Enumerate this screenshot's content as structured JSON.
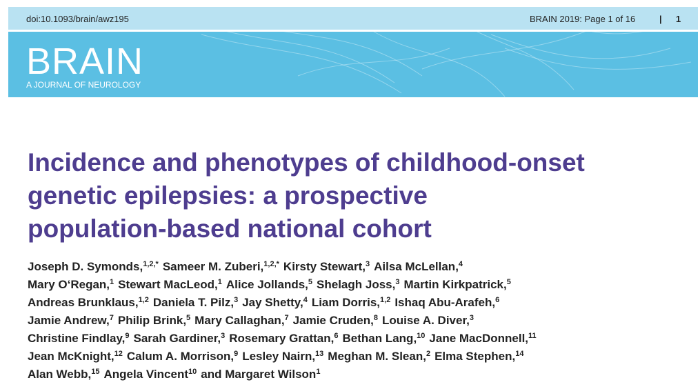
{
  "header": {
    "doi": "doi:10.1093/brain/awz195",
    "page_info": "BRAIN 2019: Page 1 of 16",
    "page_number": "1",
    "journal": "BRAIN",
    "journal_subtitle": "A JOURNAL OF NEUROLOGY"
  },
  "title_lines": [
    "Incidence and phenotypes of childhood-onset",
    "genetic epilepsies: a prospective",
    "population-based national cohort"
  ],
  "author_lines": [
    [
      {
        "name": "Joseph D. Symonds,",
        "sup": "1,2,*"
      },
      {
        "name": "Sameer M. Zuberi,",
        "sup": "1,2,*"
      },
      {
        "name": "Kirsty Stewart,",
        "sup": "3"
      },
      {
        "name": "Ailsa McLellan,",
        "sup": "4"
      }
    ],
    [
      {
        "name": "Mary O‘Regan,",
        "sup": "1"
      },
      {
        "name": "Stewart MacLeod,",
        "sup": "1"
      },
      {
        "name": "Alice Jollands,",
        "sup": "5"
      },
      {
        "name": "Shelagh Joss,",
        "sup": "3"
      },
      {
        "name": "Martin Kirkpatrick,",
        "sup": "5"
      }
    ],
    [
      {
        "name": "Andreas Brunklaus,",
        "sup": "1,2"
      },
      {
        "name": "Daniela T. Pilz,",
        "sup": "3"
      },
      {
        "name": "Jay Shetty,",
        "sup": "4"
      },
      {
        "name": "Liam Dorris,",
        "sup": "1,2"
      },
      {
        "name": "Ishaq Abu-Arafeh,",
        "sup": "6"
      }
    ],
    [
      {
        "name": "Jamie Andrew,",
        "sup": "7"
      },
      {
        "name": "Philip Brink,",
        "sup": "5"
      },
      {
        "name": "Mary Callaghan,",
        "sup": "7"
      },
      {
        "name": "Jamie Cruden,",
        "sup": "8"
      },
      {
        "name": "Louise A. Diver,",
        "sup": "3"
      }
    ],
    [
      {
        "name": "Christine Findlay,",
        "sup": "9"
      },
      {
        "name": "Sarah Gardiner,",
        "sup": "3"
      },
      {
        "name": "Rosemary Grattan,",
        "sup": "6"
      },
      {
        "name": "Bethan Lang,",
        "sup": "10"
      },
      {
        "name": "Jane MacDonnell,",
        "sup": "11"
      }
    ],
    [
      {
        "name": "Jean McKnight,",
        "sup": "12"
      },
      {
        "name": "Calum A. Morrison,",
        "sup": "9"
      },
      {
        "name": "Lesley Nairn,",
        "sup": "13"
      },
      {
        "name": "Meghan M. Slean,",
        "sup": "2"
      },
      {
        "name": "Elma Stephen,",
        "sup": "14"
      }
    ],
    [
      {
        "name": "Alan Webb,",
        "sup": "15"
      },
      {
        "name": "Angela Vincent",
        "sup": "10"
      },
      {
        "pre": "and",
        "name": "Margaret Wilson",
        "sup": "1"
      }
    ]
  ]
}
